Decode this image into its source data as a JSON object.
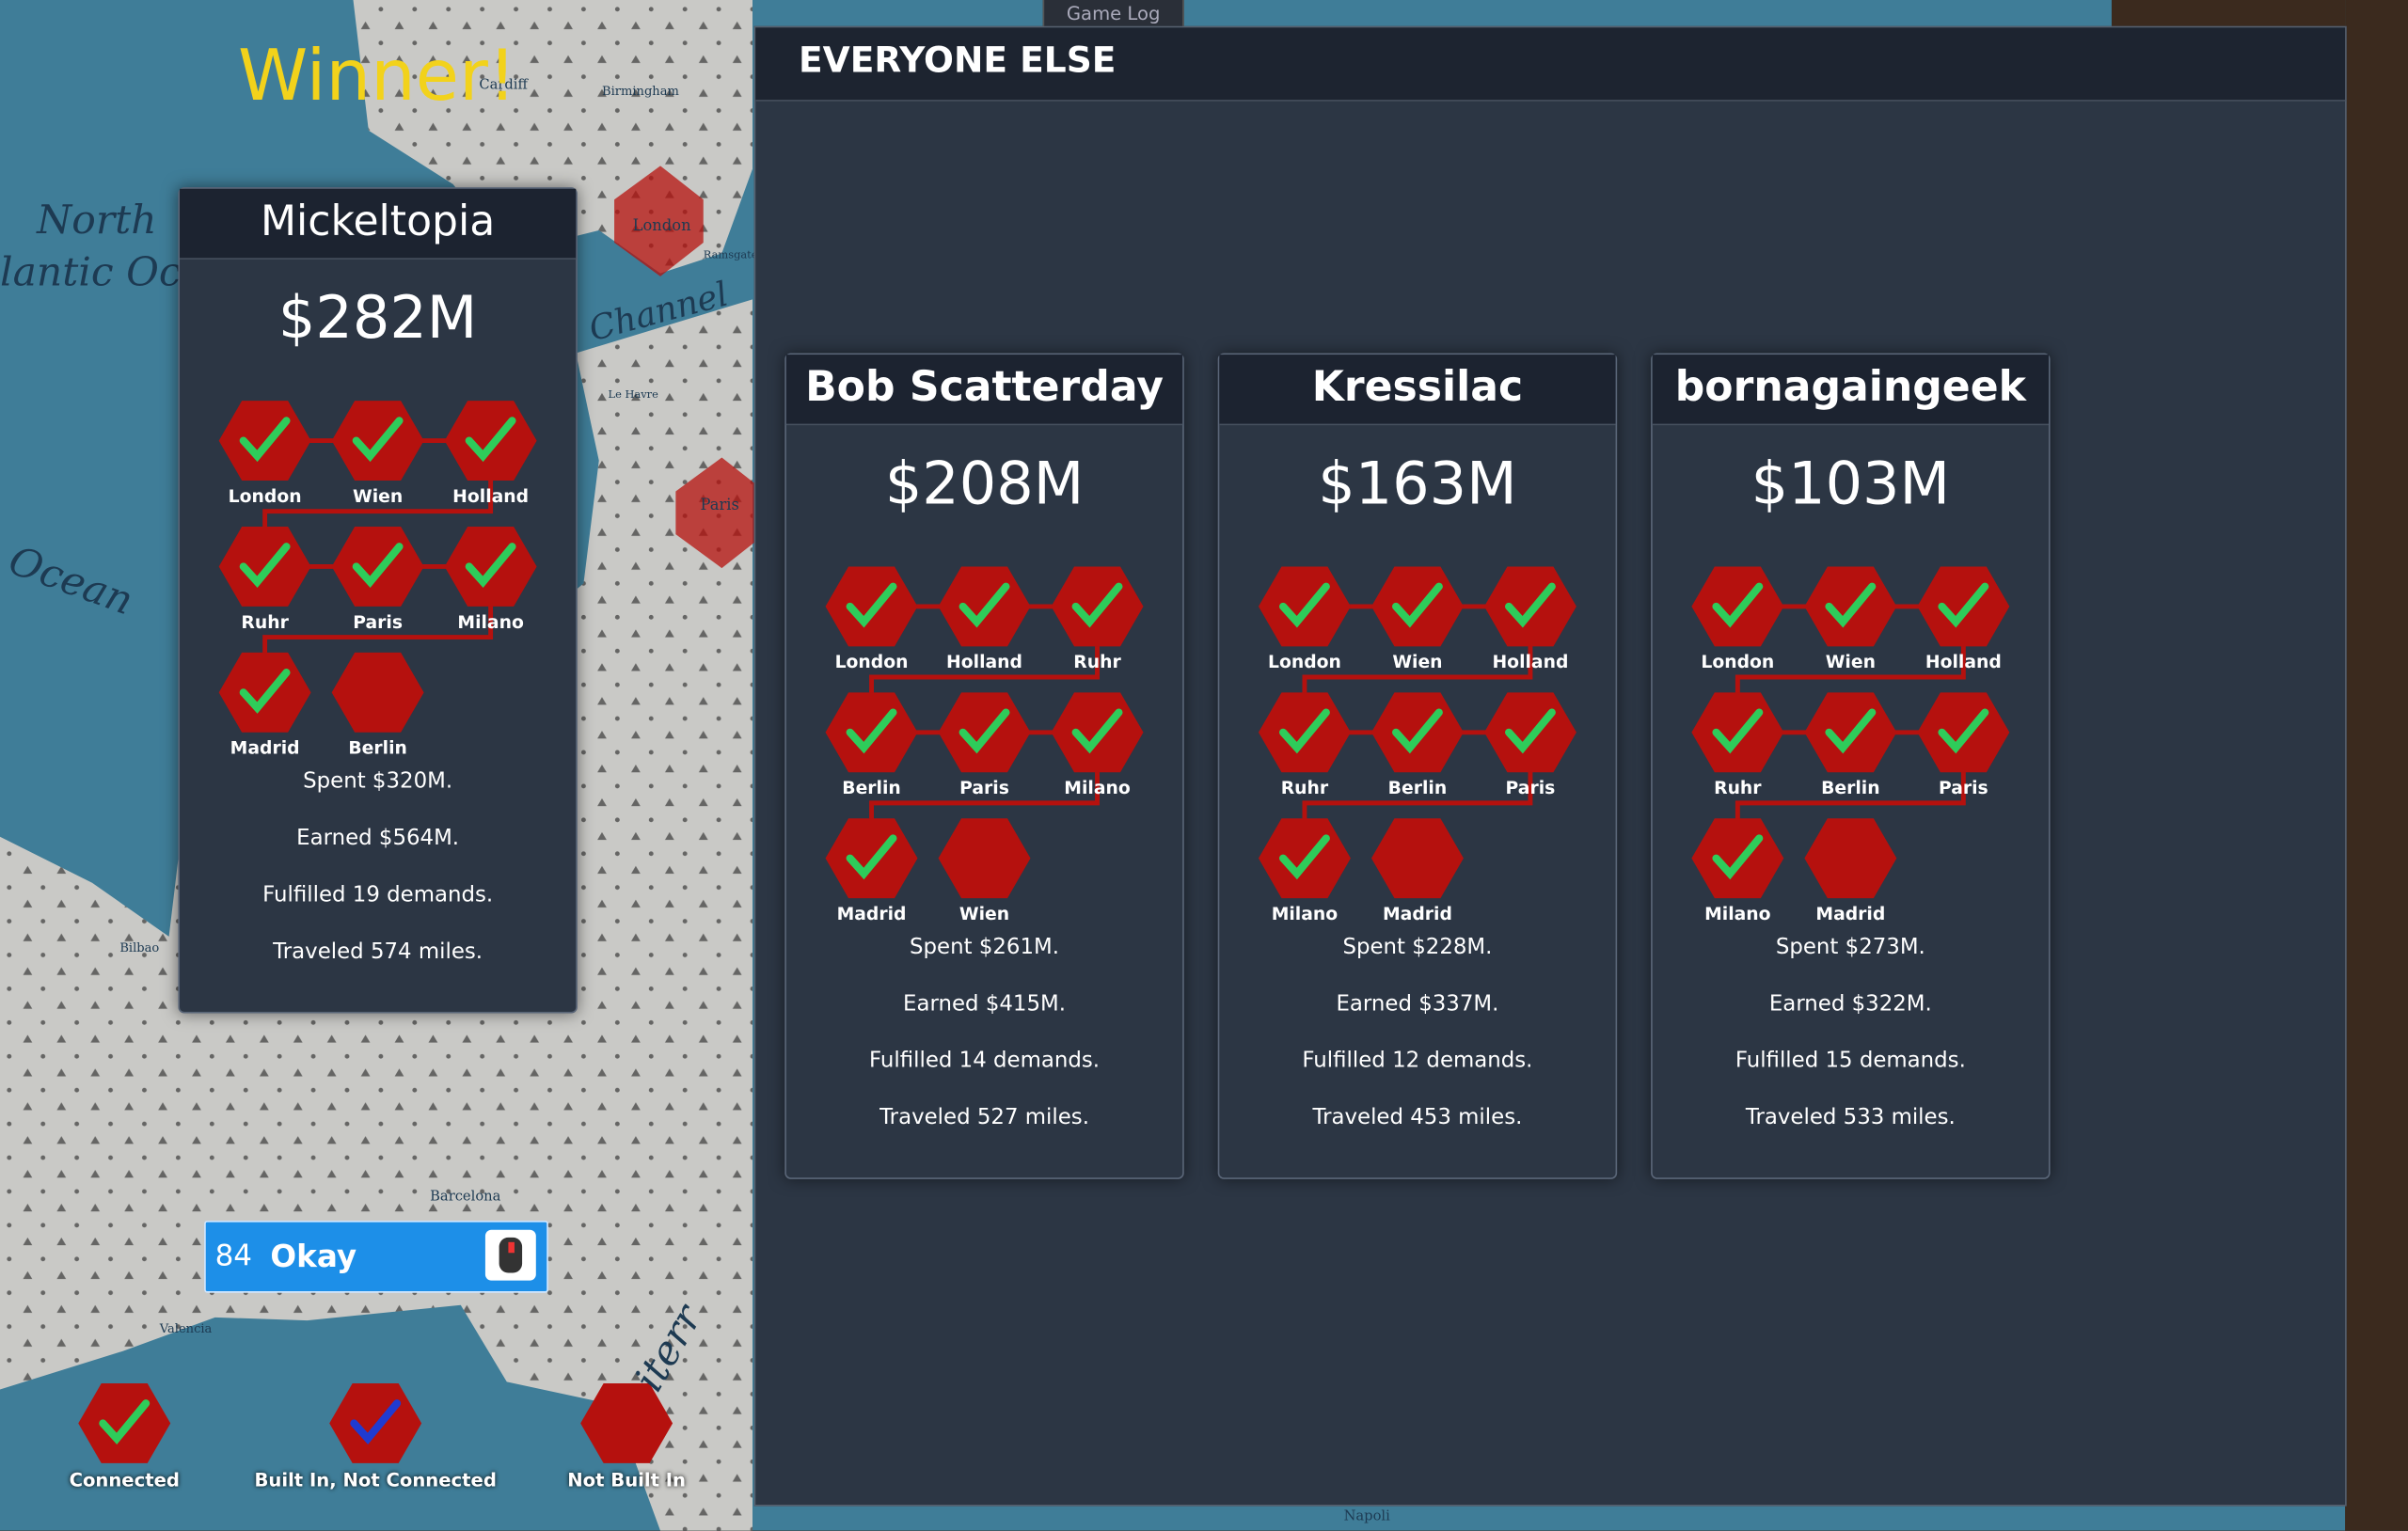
{
  "game_log_tab": "Game Log",
  "winner_label": "Winner!",
  "winner": {
    "name": "Mickeltopia",
    "money": "$282M",
    "cities": [
      {
        "name": "London",
        "connected": true
      },
      {
        "name": "Wien",
        "connected": true
      },
      {
        "name": "Holland",
        "connected": true
      },
      {
        "name": "Ruhr",
        "connected": true
      },
      {
        "name": "Paris",
        "connected": true
      },
      {
        "name": "Milano",
        "connected": true
      },
      {
        "name": "Madrid",
        "connected": true
      },
      {
        "name": "Berlin",
        "connected": false
      }
    ],
    "stats": [
      "Spent $320M.",
      "Earned $564M.",
      "Fulfilled 19 demands.",
      "Traveled 574 miles."
    ]
  },
  "others_title": "EVERYONE ELSE",
  "others": [
    {
      "name": "Bob Scatterday",
      "money": "$208M",
      "cities": [
        {
          "name": "London",
          "connected": true
        },
        {
          "name": "Holland",
          "connected": true
        },
        {
          "name": "Ruhr",
          "connected": true
        },
        {
          "name": "Berlin",
          "connected": true
        },
        {
          "name": "Paris",
          "connected": true
        },
        {
          "name": "Milano",
          "connected": true
        },
        {
          "name": "Madrid",
          "connected": true
        },
        {
          "name": "Wien",
          "connected": false
        }
      ],
      "stats": [
        "Spent $261M.",
        "Earned $415M.",
        "Fulfilled 14 demands.",
        "Traveled 527 miles."
      ]
    },
    {
      "name": "Kressilac",
      "money": "$163M",
      "cities": [
        {
          "name": "London",
          "connected": true
        },
        {
          "name": "Wien",
          "connected": true
        },
        {
          "name": "Holland",
          "connected": true
        },
        {
          "name": "Ruhr",
          "connected": true
        },
        {
          "name": "Berlin",
          "connected": true
        },
        {
          "name": "Paris",
          "connected": true
        },
        {
          "name": "Milano",
          "connected": true
        },
        {
          "name": "Madrid",
          "connected": false
        }
      ],
      "stats": [
        "Spent $228M.",
        "Earned $337M.",
        "Fulfilled 12 demands.",
        "Traveled 453 miles."
      ]
    },
    {
      "name": "bornagaingeek",
      "money": "$103M",
      "cities": [
        {
          "name": "London",
          "connected": true
        },
        {
          "name": "Wien",
          "connected": true
        },
        {
          "name": "Holland",
          "connected": true
        },
        {
          "name": "Ruhr",
          "connected": true
        },
        {
          "name": "Berlin",
          "connected": true
        },
        {
          "name": "Paris",
          "connected": true
        },
        {
          "name": "Milano",
          "connected": true
        },
        {
          "name": "Madrid",
          "connected": false
        }
      ],
      "stats": [
        "Spent $273M.",
        "Earned $322M.",
        "Fulfilled 15 demands.",
        "Traveled 533 miles."
      ]
    }
  ],
  "okay_button": {
    "count": 84,
    "label": "Okay"
  },
  "legend": [
    {
      "label": "Connected"
    },
    {
      "label": "Built In, Not Connected"
    },
    {
      "label": "Not Built In"
    }
  ],
  "map_labels": [
    "North",
    "lantic Oc",
    "Ocean",
    "Channel",
    "London",
    "Paris",
    "Cardiff",
    "Birmingham",
    "Le Havre",
    "Ramsgate",
    "Bilbao",
    "Barcelona",
    "Valencia",
    "Napoli",
    "iterr"
  ]
}
